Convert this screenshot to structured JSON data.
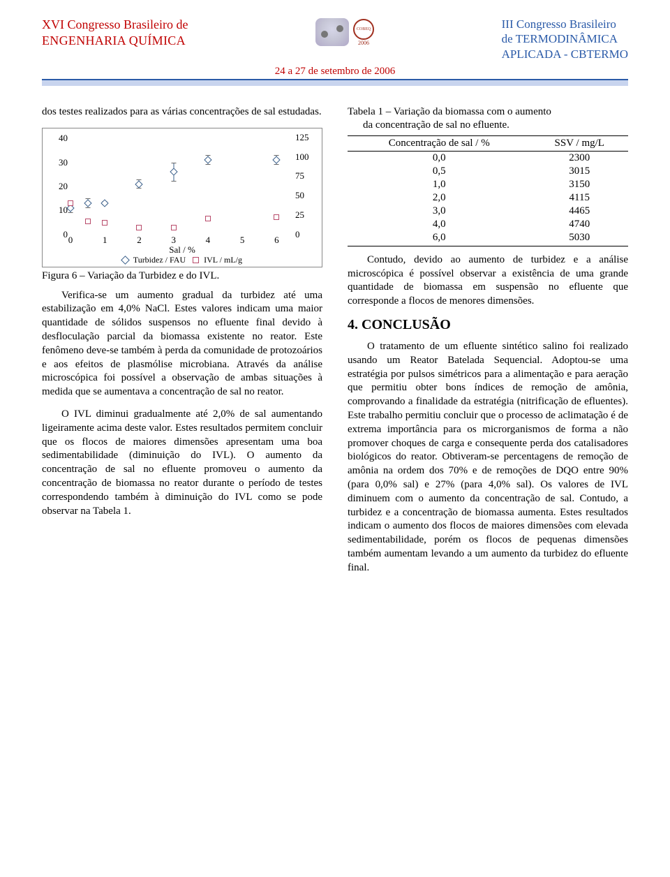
{
  "header": {
    "left_line1": "XVI Congresso Brasileiro de",
    "left_line2": "ENGENHARIA QUÍMICA",
    "right_line1": "III Congresso Brasileiro",
    "right_line2": "de TERMODINÂMICA",
    "right_line3": "APLICADA - CBTERMO",
    "dates": "24 a 27 de setembro de 2006",
    "logo_cobeq_top": "COBEQ",
    "logo_cobeq_year": "2006",
    "left_color": "#c00000",
    "right_color": "#2a5aa8",
    "rule_top_color": "#2a5aa8",
    "rule_bot_color": "#c8d4ee"
  },
  "left_col": {
    "intro": "dos testes realizados para as várias concentrações de sal estudadas.",
    "fig_caption": "Figura 6 – Variação da Turbidez e do IVL.",
    "p1": "Verifica-se um aumento gradual da turbidez até uma estabilização em 4,0% NaCl. Estes valores indicam uma maior quantidade de sólidos suspensos no efluente final devido à desfloculação parcial da biomassa existente no reator. Este fenômeno deve-se também à perda da comunidade de protozoários e aos efeitos de plasmólise microbiana. Através da análise microscópica foi possível a observação de ambas situações à medida que se aumentava a concentração de sal no reator.",
    "p2": "O IVL diminui gradualmente até 2,0% de sal aumentando ligeiramente acima deste valor. Estes resultados permitem concluir que os flocos de maiores dimensões apresentam uma boa sedimentabilidade (diminuição do IVL). O aumento da concentração de sal no efluente promoveu o aumento da concentração de biomassa no reator durante o período de testes correspondendo também à diminuição do IVL como se pode observar na Tabela 1."
  },
  "right_col": {
    "tbl_caption_l1": "Tabela 1 – Variação da biomassa com o aumento",
    "tbl_caption_l2": "da concentração de sal no efluente.",
    "th1": "Concentração de sal / %",
    "th2": "SSV / mg/L",
    "rows": [
      [
        "0,0",
        "2300"
      ],
      [
        "0,5",
        "3015"
      ],
      [
        "1,0",
        "3150"
      ],
      [
        "2,0",
        "4115"
      ],
      [
        "3,0",
        "4465"
      ],
      [
        "4,0",
        "4740"
      ],
      [
        "6,0",
        "5030"
      ]
    ],
    "p1": "Contudo, devido ao aumento de turbidez e a análise microscópica é possível observar a existência de uma grande quantidade de biomassa em suspensão no efluente que corresponde a flocos de menores dimensões.",
    "h_conc": "4. CONCLUSÃO",
    "p2": "O tratamento de um efluente sintético salino foi realizado usando um Reator Batelada Sequencial. Adoptou-se uma estratégia por pulsos simétricos para a alimentação e para aeração que permitiu obter bons índices de remoção de amônia, comprovando a finalidade da estratégia (nitrificação de efluentes). Este trabalho permitiu concluir que o processo de aclimatação é de extrema importância para os microrganismos de forma a não promover choques de carga e consequente perda dos catalisadores biológicos do reator. Obtiveram-se percentagens de remoção de amônia na ordem dos 70% e de remoções de DQO entre 90% (para 0,0% sal) e 27% (para 4,0% sal). Os valores de IVL diminuem com o aumento da concentração de sal. Contudo, a turbidez e a concentração de biomassa aumenta. Estes resultados indicam o aumento dos flocos de maiores dimensões com elevada sedimentabilidade, porém os flocos de pequenas dimensões também aumentam levando a um aumento da turbidez do efluente final."
  },
  "chart": {
    "type": "scatter-dual-axis",
    "title": null,
    "xlabel": "Sal / %",
    "xlim": [
      0,
      6.5
    ],
    "xticks": [
      0,
      1,
      2,
      3,
      4,
      5,
      6
    ],
    "y1label_inline": true,
    "y1lim": [
      0,
      42
    ],
    "y1ticks": [
      0,
      10,
      20,
      30,
      40
    ],
    "y2lim": [
      0,
      130
    ],
    "y2ticks": [
      0,
      25,
      50,
      75,
      100,
      125
    ],
    "series": [
      {
        "name": "Turbidez / FAU",
        "axis": "y1",
        "marker": "diamond",
        "color": "#3a5f8a",
        "points": [
          {
            "x": 0.0,
            "y": 11,
            "err": 2
          },
          {
            "x": 0.5,
            "y": 13,
            "err": 2
          },
          {
            "x": 1.0,
            "y": 13,
            "err": 1
          },
          {
            "x": 2.0,
            "y": 21,
            "err": 2
          },
          {
            "x": 3.0,
            "y": 26,
            "err": 4
          },
          {
            "x": 4.0,
            "y": 31,
            "err": 2
          },
          {
            "x": 6.0,
            "y": 31,
            "err": 2
          }
        ]
      },
      {
        "name": "IVL / mL/g",
        "axis": "y2",
        "marker": "square",
        "color": "#b84a6a",
        "points": [
          {
            "x": 0.0,
            "y": 40,
            "err": 3
          },
          {
            "x": 0.5,
            "y": 17,
            "err": 2
          },
          {
            "x": 1.0,
            "y": 15,
            "err": 2
          },
          {
            "x": 2.0,
            "y": 9,
            "err": 2
          },
          {
            "x": 3.0,
            "y": 9,
            "err": 2
          },
          {
            "x": 4.0,
            "y": 20,
            "err": 3
          },
          {
            "x": 6.0,
            "y": 22,
            "err": 3
          }
        ]
      }
    ],
    "legend_labels": [
      "Turbidez / FAU",
      "IVL / mL/g"
    ],
    "border_color": "#888888",
    "tick_color": "#000000",
    "background_color": "#ffffff",
    "font_size_ticks": 13,
    "font_size_legend": 12
  }
}
